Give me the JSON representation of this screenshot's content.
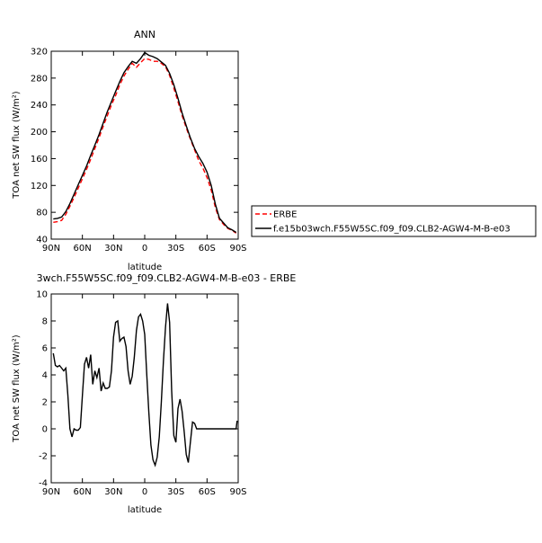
{
  "chart_data": [
    {
      "type": "line",
      "title": "ANN",
      "xlabel": "latitude",
      "ylabel": "TOA net SW flux (W/m²)",
      "xlim": [
        90,
        -90
      ],
      "ylim": [
        40,
        320
      ],
      "xticks": [
        90,
        60,
        30,
        0,
        -30,
        -60,
        -90
      ],
      "xtick_labels": [
        "90N",
        "60N",
        "30N",
        "0",
        "30S",
        "60S",
        "90S"
      ],
      "yticks": [
        40,
        80,
        120,
        160,
        200,
        240,
        280,
        320
      ],
      "ytick_labels": [
        "40",
        "80",
        "120",
        "160",
        "200",
        "240",
        "280",
        "320"
      ],
      "legend_position": "right",
      "x": [
        88,
        84,
        80,
        76,
        72,
        68,
        64,
        60,
        56,
        52,
        48,
        44,
        40,
        36,
        32,
        28,
        24,
        20,
        16,
        12,
        8,
        4,
        0,
        -4,
        -8,
        -12,
        -16,
        -20,
        -24,
        -28,
        -32,
        -36,
        -40,
        -44,
        -48,
        -52,
        -56,
        -60,
        -64,
        -68,
        -72,
        -76,
        -80,
        -84,
        -88
      ],
      "series": [
        {
          "name": "ERBE",
          "color": "#ff0000",
          "dash": true,
          "values": [
            65,
            66,
            68,
            77,
            89,
            102,
            116,
            130,
            144,
            159,
            175,
            191,
            208,
            224,
            240,
            254,
            270,
            283,
            293,
            302,
            296,
            303,
            309,
            308,
            305,
            305,
            302,
            297,
            284,
            265,
            245,
            224,
            206,
            189,
            173,
            157,
            146,
            132,
            113,
            87,
            69,
            62,
            56,
            53,
            49
          ]
        },
        {
          "name": "f.e15b03wch.F55W5SC.f09_f09.CLB2-AGW4-M-B-e03",
          "color": "#000000",
          "dash": false,
          "values": [
            70,
            71,
            73,
            81,
            93,
            107,
            121,
            135,
            149,
            165,
            180,
            196,
            213,
            230,
            245,
            260,
            275,
            288,
            297,
            305,
            302,
            309,
            318,
            314,
            312,
            309,
            304,
            299,
            287,
            270,
            250,
            228,
            209,
            191,
            175,
            163,
            153,
            140,
            120,
            92,
            71,
            64,
            57,
            54,
            50
          ]
        }
      ]
    },
    {
      "type": "line",
      "title": "3wch.F55W5SC.f09_f09.CLB2-AGW4-M-B-e03 - ERBE",
      "xlabel": "latitude",
      "ylabel": "TOA net SW flux (W/m²)",
      "xlim": [
        90,
        -90
      ],
      "ylim": [
        -4,
        10
      ],
      "xticks": [
        90,
        60,
        30,
        0,
        -30,
        -60,
        -90
      ],
      "xtick_labels": [
        "90N",
        "60N",
        "30N",
        "0",
        "30S",
        "60S",
        "90S"
      ],
      "yticks": [
        -4,
        -2,
        0,
        2,
        4,
        6,
        8,
        10
      ],
      "ytick_labels": [
        "-4",
        "-2",
        "0",
        "2",
        "4",
        "6",
        "8",
        "10"
      ],
      "series": [
        {
          "color": "#000000",
          "x": [
            88,
            86,
            84,
            82,
            80,
            78,
            76,
            74,
            72,
            70,
            68,
            66,
            64,
            62,
            60,
            58,
            56,
            54,
            52,
            50,
            48,
            46,
            44,
            42,
            40,
            38,
            36,
            34,
            32,
            30,
            28,
            26,
            24,
            22,
            20,
            18,
            16,
            14,
            12,
            10,
            8,
            6,
            4,
            2,
            0,
            -2,
            -4,
            -6,
            -8,
            -10,
            -12,
            -14,
            -16,
            -18,
            -20,
            -22,
            -24,
            -26,
            -28,
            -30,
            -32,
            -34,
            -36,
            -38,
            -40,
            -42,
            -44,
            -46,
            -48,
            -50,
            -52,
            -54,
            -56,
            -58,
            -60,
            -62,
            -64,
            -66,
            -68,
            -70,
            -72,
            -74,
            -76,
            -78,
            -80,
            -82,
            -84,
            -86,
            -88,
            -89
          ],
          "values": [
            5.6,
            4.7,
            4.6,
            4.7,
            4.5,
            4.3,
            4.5,
            2.5,
            0.0,
            -0.6,
            0.0,
            -0.1,
            -0.1,
            0.1,
            2.5,
            4.8,
            5.3,
            4.5,
            5.5,
            3.3,
            4.3,
            3.8,
            4.5,
            2.8,
            3.4,
            3.0,
            3.0,
            3.1,
            4.3,
            6.8,
            7.9,
            8.0,
            6.5,
            6.7,
            6.8,
            6.1,
            4.3,
            3.3,
            3.9,
            5.3,
            7.3,
            8.3,
            8.5,
            8.0,
            7.0,
            4.0,
            1.2,
            -1.2,
            -2.3,
            -2.7,
            -2.1,
            -0.6,
            2.0,
            5.0,
            7.5,
            9.3,
            7.9,
            2.8,
            -0.5,
            -1.0,
            1.5,
            2.2,
            1.3,
            -0.2,
            -1.9,
            -2.5,
            -1.0,
            0.5,
            0.4,
            0.0,
            0.0,
            0.0,
            0.0,
            0.0,
            0.0,
            0.0,
            0.0,
            0.0,
            0.0,
            0.0,
            0.0,
            0.0,
            0.0,
            0.0,
            0.0,
            0.0,
            0.0,
            0.0,
            0.0,
            0.6
          ]
        }
      ]
    }
  ]
}
